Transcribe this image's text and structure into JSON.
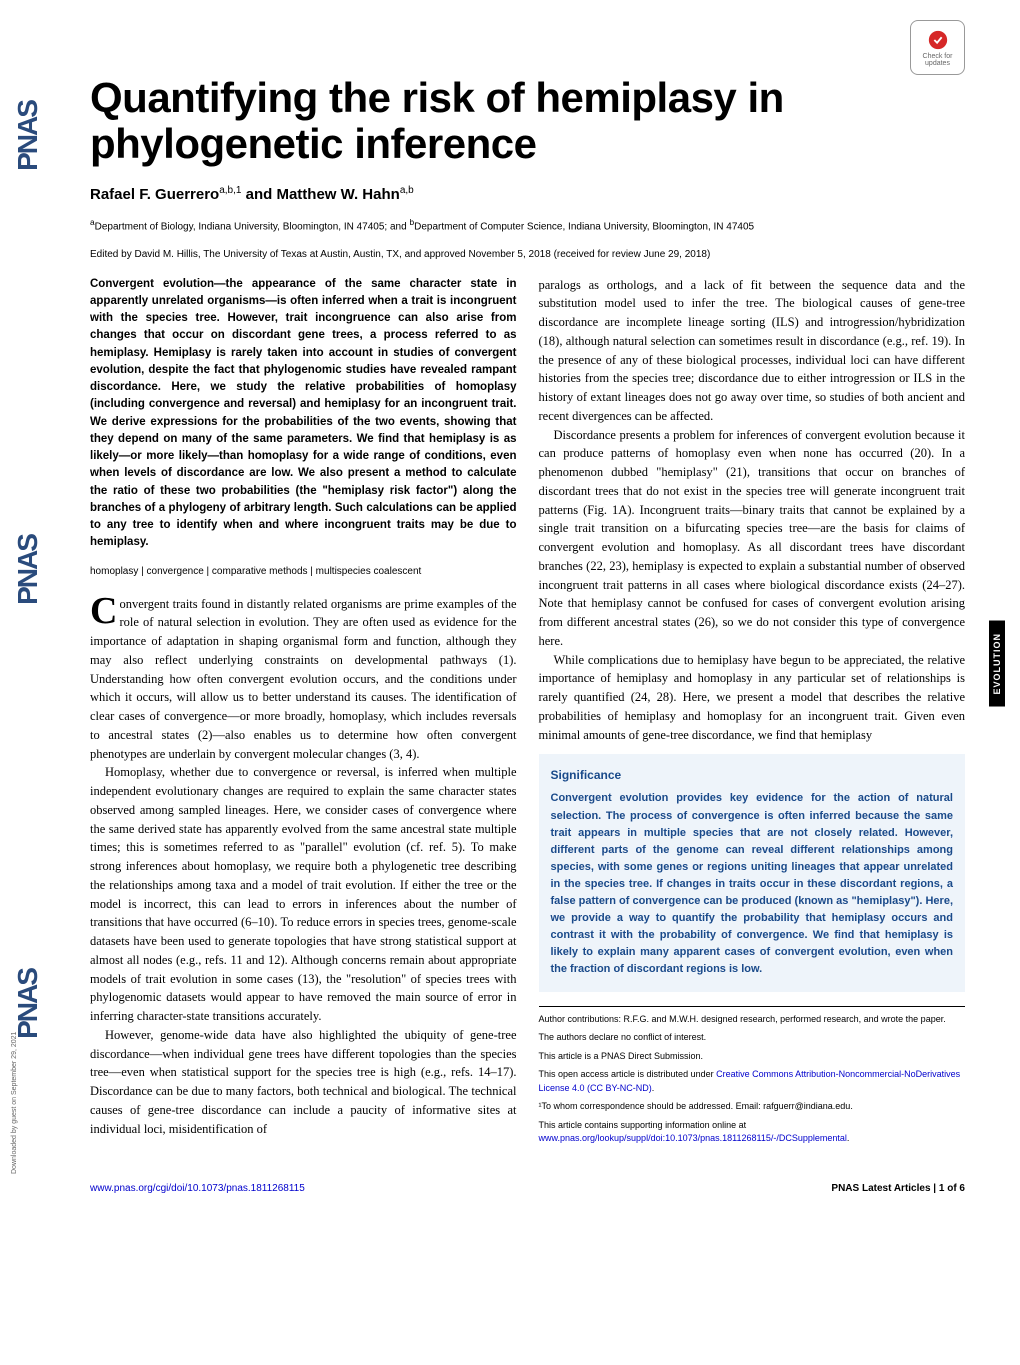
{
  "journal": {
    "name": "PNAS",
    "sidebar_logo": "PNAS",
    "check_badge_line1": "Check for",
    "check_badge_line2": "updates",
    "section_tab": "EVOLUTION"
  },
  "article": {
    "title": "Quantifying the risk of hemiplasy in phylogenetic inference",
    "authors_html": "Rafael F. Guerrero<sup>a,b,1</sup> and Matthew W. Hahn<sup>a,b</sup>",
    "affiliations_html": "<sup>a</sup>Department of Biology, Indiana University, Bloomington, IN 47405; and <sup>b</sup>Department of Computer Science, Indiana University, Bloomington, IN 47405",
    "edited_by": "Edited by David M. Hillis, The University of Texas at Austin, Austin, TX, and approved November 5, 2018 (received for review June 29, 2018)",
    "abstract": "Convergent evolution—the appearance of the same character state in apparently unrelated organisms—is often inferred when a trait is incongruent with the species tree. However, trait incongruence can also arise from changes that occur on discordant gene trees, a process referred to as hemiplasy. Hemiplasy is rarely taken into account in studies of convergent evolution, despite the fact that phylogenomic studies have revealed rampant discordance. Here, we study the relative probabilities of homoplasy (including convergence and reversal) and hemiplasy for an incongruent trait. We derive expressions for the probabilities of the two events, showing that they depend on many of the same parameters. We find that hemiplasy is as likely—or more likely—than homoplasy for a wide range of conditions, even when levels of discordance are low. We also present a method to calculate the ratio of these two probabilities (the \"hemiplasy risk factor\") along the branches of a phylogeny of arbitrary length. Such calculations can be applied to any tree to identify when and where incongruent traits may be due to hemiplasy.",
    "keywords": "homoplasy | convergence | comparative methods | multispecies coalescent"
  },
  "body": {
    "left": [
      {
        "dropcap": "C",
        "text": "onvergent traits found in distantly related organisms are prime examples of the role of natural selection in evolution. They are often used as evidence for the importance of adaptation in shaping organismal form and function, although they may also reflect underlying constraints on developmental pathways (1). Understanding how often convergent evolution occurs, and the conditions under which it occurs, will allow us to better understand its causes. The identification of clear cases of convergence—or more broadly, homoplasy, which includes reversals to ancestral states (2)—also enables us to determine how often convergent phenotypes are underlain by convergent molecular changes (3, 4)."
      },
      {
        "indent": true,
        "text": "Homoplasy, whether due to convergence or reversal, is inferred when multiple independent evolutionary changes are required to explain the same character states observed among sampled lineages. Here, we consider cases of convergence where the same derived state has apparently evolved from the same ancestral state multiple times; this is sometimes referred to as \"parallel\" evolution (cf. ref. 5). To make strong inferences about homoplasy, we require both a phylogenetic tree describing the relationships among taxa and a model of trait evolution. If either the tree or the model is incorrect, this can lead to errors in inferences about the number of transitions that have occurred (6–10). To reduce errors in species trees, genome-scale datasets have been used to generate topologies that have strong statistical support at almost all nodes (e.g., refs. 11 and 12). Although concerns remain about appropriate models of trait evolution in some cases (13), the \"resolution\" of species trees with phylogenomic datasets would appear to have removed the main source of error in inferring character-state transitions accurately."
      },
      {
        "indent": true,
        "text": "However, genome-wide data have also highlighted the ubiquity of gene-tree discordance—when individual gene trees have different topologies than the species tree—even when statistical support for the species tree is high (e.g., refs. 14–17). Discordance can be due to many factors, both technical and biological. The technical causes of gene-tree discordance can include a paucity of informative sites at individual loci, misidentification of"
      }
    ],
    "right": [
      {
        "text": "paralogs as orthologs, and a lack of fit between the sequence data and the substitution model used to infer the tree. The biological causes of gene-tree discordance are incomplete lineage sorting (ILS) and introgression/hybridization (18), although natural selection can sometimes result in discordance (e.g., ref. 19). In the presence of any of these biological processes, individual loci can have different histories from the species tree; discordance due to either introgression or ILS in the history of extant lineages does not go away over time, so studies of both ancient and recent divergences can be affected."
      },
      {
        "indent": true,
        "text": "Discordance presents a problem for inferences of convergent evolution because it can produce patterns of homoplasy even when none has occurred (20). In a phenomenon dubbed \"hemiplasy\" (21), transitions that occur on branches of discordant trees that do not exist in the species tree will generate incongruent trait patterns (Fig. 1A). Incongruent traits—binary traits that cannot be explained by a single trait transition on a bifurcating species tree—are the basis for claims of convergent evolution and homoplasy. As all discordant trees have discordant branches (22, 23), hemiplasy is expected to explain a substantial number of observed incongruent trait patterns in all cases where biological discordance exists (24–27). Note that hemiplasy cannot be confused for cases of convergent evolution arising from different ancestral states (26), so we do not consider this type of convergence here."
      },
      {
        "indent": true,
        "text": "While complications due to hemiplasy have begun to be appreciated, the relative importance of hemiplasy and homoplasy in any particular set of relationships is rarely quantified (24, 28). Here, we present a model that describes the relative probabilities of hemiplasy and homoplasy for an incongruent trait. Given even minimal amounts of gene-tree discordance, we find that hemiplasy"
      }
    ]
  },
  "significance": {
    "title": "Significance",
    "body": "Convergent evolution provides key evidence for the action of natural selection. The process of convergence is often inferred because the same trait appears in multiple species that are not closely related. However, different parts of the genome can reveal different relationships among species, with some genes or regions uniting lineages that appear unrelated in the species tree. If changes in traits occur in these discordant regions, a false pattern of convergence can be produced (known as \"hemiplasy\"). Here, we provide a way to quantify the probability that hemiplasy occurs and contrast it with the probability of convergence. We find that hemiplasy is likely to explain many apparent cases of convergent evolution, even when the fraction of discordant regions is low."
  },
  "footnotes": {
    "author_contributions": "Author contributions: R.F.G. and M.W.H. designed research, performed research, and wrote the paper.",
    "conflict": "The authors declare no conflict of interest.",
    "submission": "This article is a PNAS Direct Submission.",
    "license_prefix": "This open access article is distributed under ",
    "license_link": "Creative Commons Attribution-Noncommercial-NoDerivatives License 4.0 (CC BY-NC-ND)",
    "correspondence": "¹To whom correspondence should be addressed. Email: rafguerr@indiana.edu.",
    "supplement_prefix": "This article contains supporting information online at ",
    "supplement_link": "www.pnas.org/lookup/suppl/doi:10.1073/pnas.1811268115/-/DCSupplemental"
  },
  "footer": {
    "doi": "www.pnas.org/cgi/doi/10.1073/pnas.1811268115",
    "right": "PNAS Latest Articles | 1 of 6"
  },
  "downloaded": "Downloaded by guest on September 29, 2021",
  "colors": {
    "pnas_blue": "#2a4b7c",
    "sig_blue": "#1a4a8a",
    "sig_bg": "#eef4fa",
    "link": "#0000cc"
  }
}
